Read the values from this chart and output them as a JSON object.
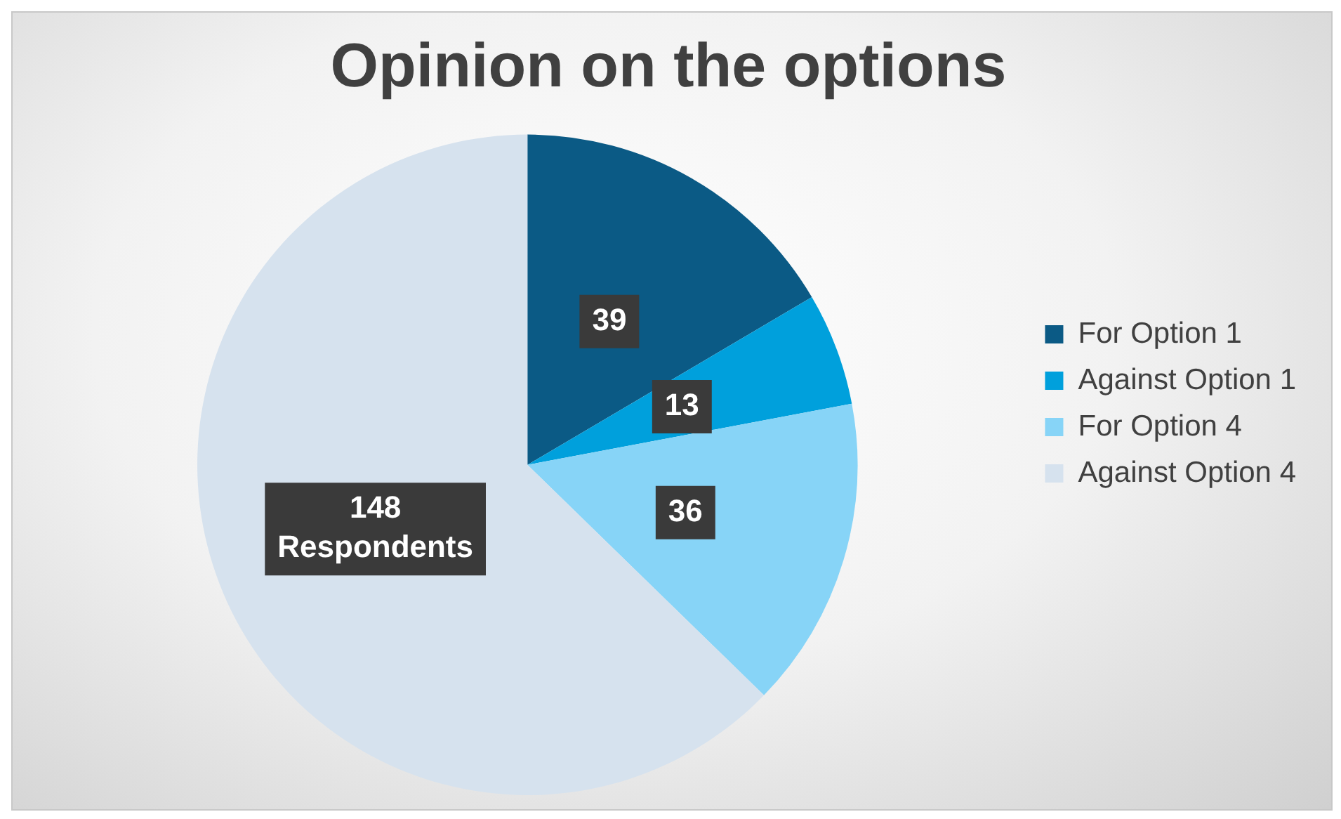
{
  "chart_data": {
    "type": "pie",
    "title": "Opinion on the options",
    "categories": [
      "For Option 1",
      "Against Option 1",
      "For Option 4",
      "Against Option 4"
    ],
    "values": [
      39,
      13,
      36,
      148
    ],
    "colors": [
      "#0b5a85",
      "#00a0dc",
      "#87d4f7",
      "#d6e2ee"
    ],
    "value_labels": [
      "39",
      "13",
      "36",
      "148\nRespondents"
    ],
    "legend": "right"
  }
}
